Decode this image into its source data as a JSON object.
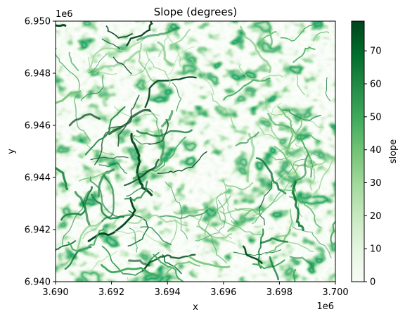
{
  "chart_data": {
    "type": "heatmap",
    "title": "Slope (degrees)",
    "xlabel": "x",
    "ylabel": "y",
    "x_offset_label": "1e6",
    "y_offset_label": "1e6",
    "xlim": [
      3.69,
      3.7
    ],
    "ylim": [
      6.94,
      6.95
    ],
    "x_ticks": [
      "3.690",
      "3.692",
      "3.694",
      "3.696",
      "3.698",
      "3.700"
    ],
    "y_ticks": [
      "6.940",
      "6.942",
      "6.944",
      "6.946",
      "6.948",
      "6.950"
    ],
    "colorbar": {
      "label": "slope",
      "range": [
        0,
        79
      ],
      "ticks": [
        "0",
        "10",
        "20",
        "30",
        "40",
        "50",
        "60",
        "70"
      ],
      "colormap": "Greens",
      "colors": [
        "#f7fcf5",
        "#e5f5e0",
        "#c7e9c0",
        "#a1d99b",
        "#74c476",
        "#41ab5d",
        "#238b45",
        "#006d2c",
        "#00441b"
      ]
    }
  }
}
